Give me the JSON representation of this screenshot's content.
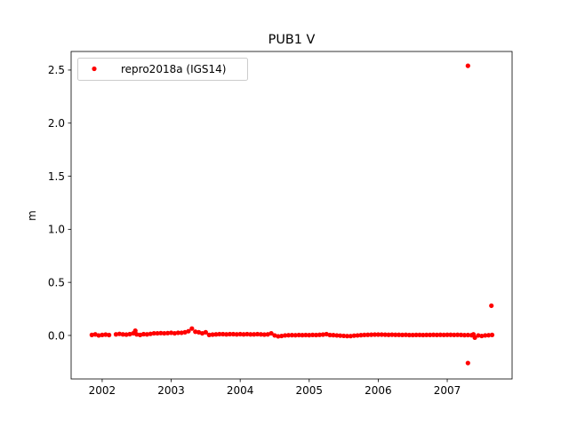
{
  "chart_data": {
    "type": "scatter",
    "title": "PUB1 V",
    "xlabel": "",
    "ylabel": "m",
    "xlim": [
      2001.55,
      2007.94
    ],
    "ylim": [
      -0.41,
      2.675
    ],
    "xticks": [
      2002,
      2003,
      2004,
      2005,
      2006,
      2007
    ],
    "xtick_labels": [
      "2002",
      "2003",
      "2004",
      "2005",
      "2006",
      "2007"
    ],
    "yticks": [
      0.0,
      0.5,
      1.0,
      1.5,
      2.0,
      2.5
    ],
    "ytick_labels": [
      "0.0",
      "0.5",
      "1.0",
      "1.5",
      "2.0",
      "2.5"
    ],
    "grid": false,
    "legend_placement": "top-left",
    "series": [
      {
        "name": "repro2018a (IGS14)",
        "color": "#ff0000",
        "marker": "dot",
        "points": [
          [
            2001.85,
            0.005
          ],
          [
            2001.9,
            0.01
          ],
          [
            2001.95,
            0.0
          ],
          [
            2002.0,
            0.005
          ],
          [
            2002.05,
            0.008
          ],
          [
            2002.1,
            0.004
          ],
          [
            2002.2,
            0.01
          ],
          [
            2002.25,
            0.015
          ],
          [
            2002.3,
            0.01
          ],
          [
            2002.35,
            0.008
          ],
          [
            2002.4,
            0.012
          ],
          [
            2002.45,
            0.02
          ],
          [
            2002.48,
            0.045
          ],
          [
            2002.5,
            0.01
          ],
          [
            2002.55,
            0.005
          ],
          [
            2002.6,
            0.012
          ],
          [
            2002.65,
            0.01
          ],
          [
            2002.7,
            0.015
          ],
          [
            2002.75,
            0.02
          ],
          [
            2002.8,
            0.02
          ],
          [
            2002.85,
            0.022
          ],
          [
            2002.9,
            0.02
          ],
          [
            2002.95,
            0.022
          ],
          [
            2003.0,
            0.025
          ],
          [
            2003.05,
            0.02
          ],
          [
            2003.1,
            0.025
          ],
          [
            2003.15,
            0.025
          ],
          [
            2003.2,
            0.03
          ],
          [
            2003.25,
            0.04
          ],
          [
            2003.3,
            0.065
          ],
          [
            2003.35,
            0.035
          ],
          [
            2003.4,
            0.03
          ],
          [
            2003.45,
            0.02
          ],
          [
            2003.5,
            0.03
          ],
          [
            2003.55,
            0.005
          ],
          [
            2003.6,
            0.008
          ],
          [
            2003.65,
            0.01
          ],
          [
            2003.7,
            0.012
          ],
          [
            2003.75,
            0.012
          ],
          [
            2003.8,
            0.01
          ],
          [
            2003.85,
            0.012
          ],
          [
            2003.9,
            0.012
          ],
          [
            2003.95,
            0.01
          ],
          [
            2004.0,
            0.012
          ],
          [
            2004.05,
            0.01
          ],
          [
            2004.1,
            0.012
          ],
          [
            2004.15,
            0.01
          ],
          [
            2004.2,
            0.01
          ],
          [
            2004.25,
            0.012
          ],
          [
            2004.3,
            0.01
          ],
          [
            2004.35,
            0.008
          ],
          [
            2004.4,
            0.01
          ],
          [
            2004.45,
            0.02
          ],
          [
            2004.5,
            0.0
          ],
          [
            2004.55,
            -0.008
          ],
          [
            2004.6,
            -0.005
          ],
          [
            2004.65,
            0.0
          ],
          [
            2004.7,
            0.002
          ],
          [
            2004.75,
            0.003
          ],
          [
            2004.8,
            0.002
          ],
          [
            2004.85,
            0.004
          ],
          [
            2004.9,
            0.003
          ],
          [
            2004.95,
            0.004
          ],
          [
            2005.0,
            0.003
          ],
          [
            2005.05,
            0.005
          ],
          [
            2005.1,
            0.004
          ],
          [
            2005.15,
            0.006
          ],
          [
            2005.2,
            0.008
          ],
          [
            2005.25,
            0.012
          ],
          [
            2005.3,
            0.004
          ],
          [
            2005.35,
            0.003
          ],
          [
            2005.4,
            0.0
          ],
          [
            2005.45,
            -0.002
          ],
          [
            2005.5,
            -0.004
          ],
          [
            2005.55,
            -0.006
          ],
          [
            2005.6,
            -0.006
          ],
          [
            2005.65,
            -0.002
          ],
          [
            2005.7,
            0.0
          ],
          [
            2005.75,
            0.003
          ],
          [
            2005.8,
            0.005
          ],
          [
            2005.85,
            0.006
          ],
          [
            2005.9,
            0.007
          ],
          [
            2005.95,
            0.008
          ],
          [
            2006.0,
            0.008
          ],
          [
            2006.05,
            0.008
          ],
          [
            2006.1,
            0.007
          ],
          [
            2006.15,
            0.006
          ],
          [
            2006.2,
            0.007
          ],
          [
            2006.25,
            0.006
          ],
          [
            2006.3,
            0.006
          ],
          [
            2006.35,
            0.005
          ],
          [
            2006.4,
            0.006
          ],
          [
            2006.45,
            0.004
          ],
          [
            2006.5,
            0.004
          ],
          [
            2006.55,
            0.005
          ],
          [
            2006.6,
            0.005
          ],
          [
            2006.65,
            0.004
          ],
          [
            2006.7,
            0.005
          ],
          [
            2006.75,
            0.005
          ],
          [
            2006.8,
            0.006
          ],
          [
            2006.85,
            0.005
          ],
          [
            2006.9,
            0.006
          ],
          [
            2006.95,
            0.005
          ],
          [
            2007.0,
            0.006
          ],
          [
            2007.05,
            0.006
          ],
          [
            2007.1,
            0.005
          ],
          [
            2007.15,
            0.006
          ],
          [
            2007.2,
            0.005
          ],
          [
            2007.25,
            0.003
          ],
          [
            2007.3,
            0.004
          ],
          [
            2007.35,
            0.002
          ],
          [
            2007.38,
            0.01
          ],
          [
            2007.4,
            -0.02
          ],
          [
            2007.45,
            0.0
          ],
          [
            2007.5,
            -0.005
          ],
          [
            2007.55,
            0.0
          ],
          [
            2007.6,
            0.002
          ],
          [
            2007.65,
            0.005
          ],
          [
            2007.3,
            2.54
          ],
          [
            2007.3,
            -0.26
          ],
          [
            2007.64,
            0.28
          ]
        ]
      }
    ]
  }
}
